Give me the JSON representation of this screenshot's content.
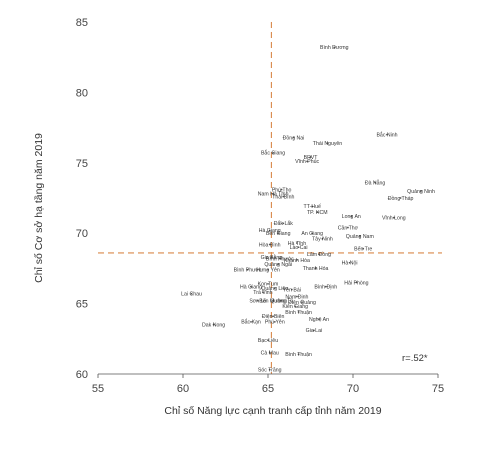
{
  "chart_data": {
    "type": "scatter",
    "xlabel": "Chỉ số Năng lực cạnh tranh cấp tỉnh năm 2019",
    "ylabel": "Chỉ số Cơ sở hạ tầng năm 2019",
    "xlim": [
      55,
      75
    ],
    "ylim": [
      60,
      85
    ],
    "xticks": [
      "55",
      "60",
      "65",
      "70",
      "75"
    ],
    "yticks": [
      "60",
      "65",
      "70",
      "75",
      "80",
      "85"
    ],
    "reference_lines": {
      "x": 65.2,
      "y": 68.6,
      "color": "#d9894a",
      "style": "dashed"
    },
    "annotation": "r=.52*",
    "marker_color": "#555555",
    "points": [
      {
        "label": "Bình Dương",
        "x": 68.9,
        "y": 83.2
      },
      {
        "label": "Bắc Ninh",
        "x": 72.0,
        "y": 77.0
      },
      {
        "label": "Đồng Nai",
        "x": 66.5,
        "y": 76.8
      },
      {
        "label": "Thái Nguyên",
        "x": 68.5,
        "y": 76.4
      },
      {
        "label": "Bắc Giang",
        "x": 65.3,
        "y": 75.7
      },
      {
        "label": "BRVT",
        "x": 67.5,
        "y": 75.4
      },
      {
        "label": "Vĩnh Phúc",
        "x": 67.3,
        "y": 75.1
      },
      {
        "label": "Đà Nẵng",
        "x": 71.3,
        "y": 73.6
      },
      {
        "label": "Quảng Ninh",
        "x": 74.0,
        "y": 73.0
      },
      {
        "label": "Đồng Tháp",
        "x": 72.8,
        "y": 72.5
      },
      {
        "label": "Phú Thọ",
        "x": 65.8,
        "y": 73.1
      },
      {
        "label": "Nam Hà Tĩnh",
        "x": 65.3,
        "y": 72.8
      },
      {
        "label": "Thái Bình",
        "x": 65.9,
        "y": 72.6
      },
      {
        "label": "TT-Huế",
        "x": 67.6,
        "y": 71.9
      },
      {
        "label": "TP. HCM",
        "x": 67.9,
        "y": 71.5
      },
      {
        "label": "Long An",
        "x": 69.9,
        "y": 71.2
      },
      {
        "label": "Vĩnh Long",
        "x": 72.4,
        "y": 71.1
      },
      {
        "label": "Đắk Lắk",
        "x": 65.9,
        "y": 70.7
      },
      {
        "label": "Cần Thơ",
        "x": 69.7,
        "y": 70.4
      },
      {
        "label": "Hà Giang",
        "x": 65.1,
        "y": 70.2
      },
      {
        "label": "Bến Giang",
        "x": 65.6,
        "y": 70.0
      },
      {
        "label": "An Giang",
        "x": 67.6,
        "y": 70.0
      },
      {
        "label": "Quảng Nam",
        "x": 70.4,
        "y": 69.8
      },
      {
        "label": "Tây Ninh",
        "x": 68.2,
        "y": 69.6
      },
      {
        "label": "Hòa Bình",
        "x": 65.1,
        "y": 69.2
      },
      {
        "label": "Hà Tĩnh",
        "x": 66.7,
        "y": 69.3
      },
      {
        "label": "Lào Cai",
        "x": 66.8,
        "y": 69.0
      },
      {
        "label": "Bến Tre",
        "x": 70.6,
        "y": 68.9
      },
      {
        "label": "Lâm Đồng",
        "x": 68.0,
        "y": 68.5
      },
      {
        "label": "Gia Bằng",
        "x": 65.2,
        "y": 68.3
      },
      {
        "label": "Bình Phước",
        "x": 65.7,
        "y": 68.2
      },
      {
        "label": "Khánh Hòa",
        "x": 66.7,
        "y": 68.1
      },
      {
        "label": "Quảng Ngãi",
        "x": 65.6,
        "y": 67.8
      },
      {
        "label": "Hà Nội",
        "x": 69.8,
        "y": 67.9
      },
      {
        "label": "Thanh Hóa",
        "x": 67.8,
        "y": 67.5
      },
      {
        "label": "Bình Phước",
        "x": 63.8,
        "y": 67.4
      },
      {
        "label": "Hưng Yên",
        "x": 65.0,
        "y": 67.4
      },
      {
        "label": "Hải Phòng",
        "x": 70.2,
        "y": 66.5
      },
      {
        "label": "Kon Tum",
        "x": 65.0,
        "y": 66.4
      },
      {
        "label": "Hà Giang",
        "x": 64.0,
        "y": 66.2
      },
      {
        "label": "Quảng Liên",
        "x": 65.4,
        "y": 66.1
      },
      {
        "label": "Yên Bái",
        "x": 66.4,
        "y": 66.0
      },
      {
        "label": "Bình Định",
        "x": 68.4,
        "y": 66.2
      },
      {
        "label": "Lai Chau",
        "x": 60.5,
        "y": 65.7
      },
      {
        "label": "Trà Vinh",
        "x": 64.7,
        "y": 65.8
      },
      {
        "label": "Nam Định",
        "x": 66.7,
        "y": 65.5
      },
      {
        "label": "Sơn La",
        "x": 64.4,
        "y": 65.2
      },
      {
        "label": "Bến Mường",
        "x": 65.3,
        "y": 65.2
      },
      {
        "label": "Quảng Trị",
        "x": 65.8,
        "y": 65.2
      },
      {
        "label": "Điện Quảng",
        "x": 67.0,
        "y": 65.1
      },
      {
        "label": "Kiên Giang",
        "x": 66.6,
        "y": 64.8
      },
      {
        "label": "Bình Thuận",
        "x": 66.8,
        "y": 64.4
      },
      {
        "label": "Điện Biên",
        "x": 65.3,
        "y": 64.1
      },
      {
        "label": "Nghệ An",
        "x": 68.0,
        "y": 63.9
      },
      {
        "label": "Dak Nong",
        "x": 61.8,
        "y": 63.5
      },
      {
        "label": "Bắc Kạn",
        "x": 64.0,
        "y": 63.7
      },
      {
        "label": "Phú Yên",
        "x": 65.4,
        "y": 63.7
      },
      {
        "label": "Gia Lai",
        "x": 67.7,
        "y": 63.1
      },
      {
        "label": "Bạc Liêu",
        "x": 65.0,
        "y": 62.4
      },
      {
        "label": "Cà Mau",
        "x": 65.1,
        "y": 61.5
      },
      {
        "label": "Bình Thuận",
        "x": 66.8,
        "y": 61.4
      },
      {
        "label": "Sóc Trăng",
        "x": 65.1,
        "y": 60.3
      }
    ]
  }
}
